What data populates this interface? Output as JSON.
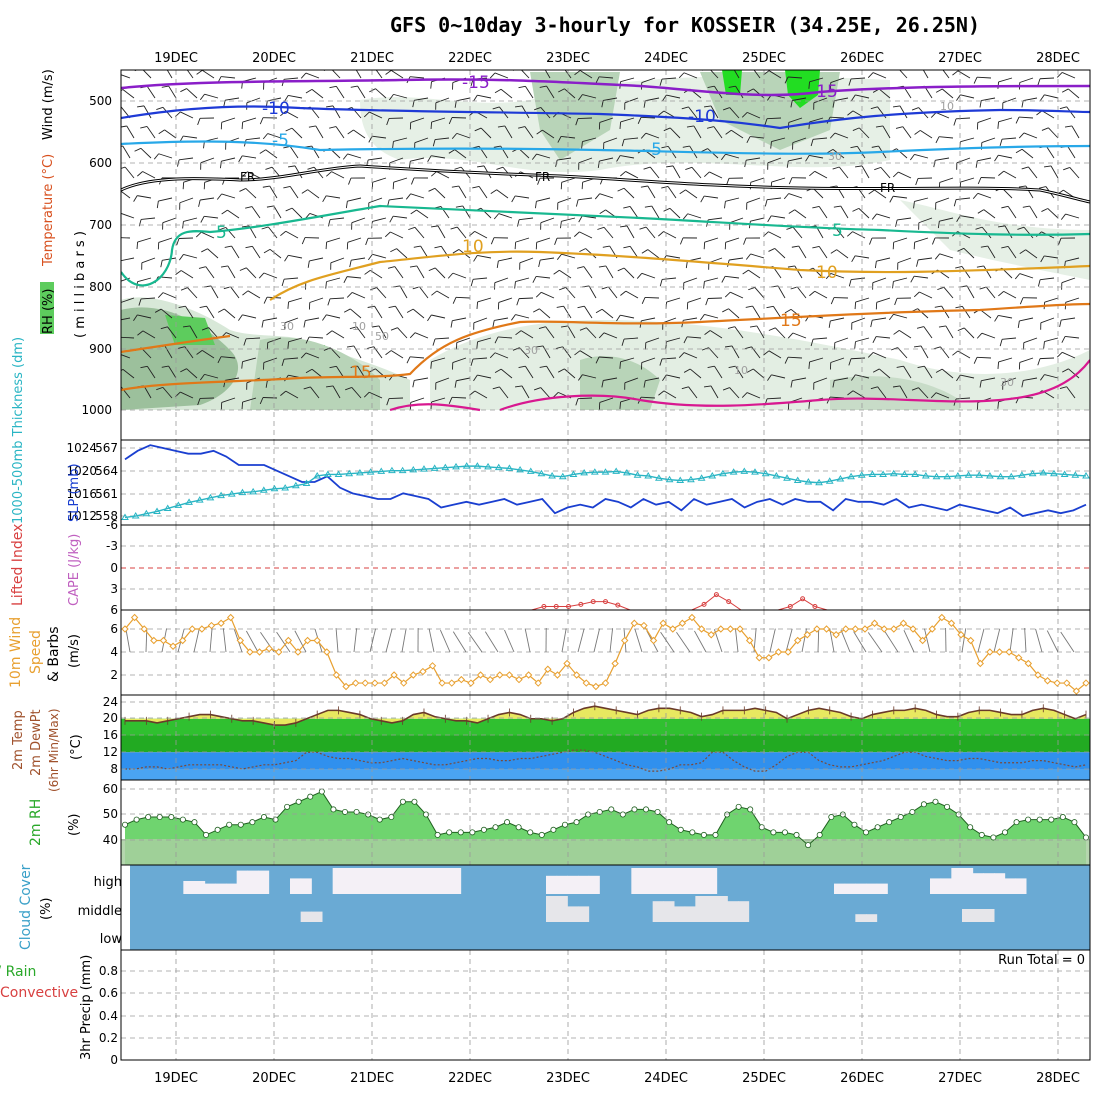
{
  "header": {
    "title": "GFS 0~10day 3-hourly for KOSSEIR (34.25E, 26.25N)"
  },
  "dates": [
    "19DEC",
    "20DEC",
    "21DEC",
    "22DEC",
    "23DEC",
    "24DEC",
    "25DEC",
    "26DEC",
    "27DEC",
    "28DEC"
  ],
  "upper_panel": {
    "labels": {
      "wind": "Wind (m/s)",
      "temperature": "Temperature (°C)",
      "rh": "RH (%)",
      "millibars": "( m i l l i b a r s )"
    },
    "pressure_ticks": [
      "500",
      "600",
      "700",
      "800",
      "900",
      "1000"
    ],
    "contour_labels": [
      "-15",
      "-15",
      "-10",
      "-10",
      "-5",
      "-5",
      "FR",
      "FR",
      "FR",
      "5",
      "5",
      "10",
      "10",
      "15",
      "15",
      "30",
      "30",
      "10",
      "10",
      "30",
      "50",
      "10",
      "30"
    ]
  },
  "thickness_panel": {
    "labels": {
      "thickness": "1000-500mb Thickness (dm)",
      "slp": "SLP (mb)"
    },
    "left_ticks": [
      "567",
      "564",
      "561",
      "558"
    ],
    "right_ticks": [
      "1024",
      "1020",
      "1016",
      "1012"
    ]
  },
  "cape_panel": {
    "labels": {
      "li": "Lifted Index",
      "cape": "CAPE (J/kg)"
    },
    "ticks": [
      "-6",
      "-3",
      "0",
      "3",
      "6"
    ]
  },
  "wind10_panel": {
    "labels": {
      "main": "10m Wind",
      "speed": "Speed",
      "barbs": "& Barbs",
      "unit": "(m/s)"
    },
    "ticks": [
      "6",
      "4",
      "2"
    ]
  },
  "temp_panel": {
    "labels": {
      "l1": "2m Temp",
      "l2": "2m DewPt",
      "l3": "(6hr Min/Max)",
      "unit": "(°C)"
    },
    "ticks": [
      "24",
      "20",
      "16",
      "12",
      "8"
    ]
  },
  "rh_panel": {
    "labels": {
      "main": "2m RH",
      "unit": "(%)"
    },
    "ticks": [
      "60",
      "50",
      "40"
    ]
  },
  "cloud_panel": {
    "labels": {
      "main": "Cloud Cover",
      "unit": "(%)"
    },
    "levels": [
      "high",
      "middle",
      "low"
    ]
  },
  "precip_panel": {
    "labels": {
      "l1": "tal / Rain",
      "l2": "Convective",
      "main": "3hr Precip (mm)"
    },
    "ticks": [
      "0.8",
      "0.6",
      "0.4",
      "0.2",
      "0"
    ],
    "run_total": "Run Total = 0"
  },
  "colors": {
    "slp": "#1a3fd0",
    "thickness": "#2ab5c4",
    "li": "#d84040",
    "cape": "#c060c0",
    "wind_speed": "#e8a030",
    "temp_fill": "#e8e860",
    "green_fill": "#30c030",
    "dew_fill": "#3090ee",
    "rh_fill": "#6fd46f",
    "cloud_bg": "#6aaad4",
    "cloud": "#f4f0f6"
  },
  "chart_data": [
    {
      "type": "line",
      "title": "",
      "x_unit": "time index (3-hourly steps)",
      "series": [
        {
          "name": "SLP",
          "values": [
            1022,
            1023.5,
            1024.5,
            1024,
            1023.5,
            1023,
            1023,
            1023.5,
            1022.5,
            1021,
            1021,
            1021,
            1020,
            1019,
            1018,
            1018,
            1019,
            1017,
            1016,
            1015.5,
            1015,
            1015,
            1016,
            1015.5,
            1015,
            1013.5,
            1014,
            1014.5,
            1014,
            1014.5,
            1015,
            1014,
            1014.5,
            1015,
            1012.5,
            1013.5,
            1014,
            1013.5,
            1015,
            1014.5,
            1013.5,
            1015,
            1014,
            1014.5,
            1013,
            1015,
            1014,
            1014.5,
            1015,
            1013.5,
            1014.5,
            1015,
            1014,
            1015,
            1014.5,
            1014.5,
            1013,
            1015,
            1014.5,
            1014.5,
            1014,
            1015,
            1013.5,
            1014,
            1013.5,
            1013,
            1014,
            1013.5,
            1013,
            1012.5,
            1013.5,
            1012,
            1012.5,
            1013,
            1012.5,
            1013,
            1014
          ]
        },
        {
          "name": "1000-500mb Thickness",
          "values": [
            557.8,
            558,
            558.3,
            558.6,
            559,
            559.4,
            559.8,
            560.1,
            560.4,
            560.7,
            560.9,
            561.1,
            561.2,
            561.4,
            561.6,
            561.7,
            562,
            562.3,
            563.3,
            563.5,
            563.5,
            563.6,
            563.7,
            563.8,
            563.9,
            564,
            564,
            564.1,
            564.2,
            564.3,
            564.4,
            564.5,
            564.6,
            564.6,
            564.5,
            564.4,
            564.3,
            564.1,
            563.9,
            563.6,
            563.3,
            563.2,
            563.5,
            563.7,
            563.8,
            563.8,
            563.9,
            563.7,
            563.4,
            563.3,
            563,
            562.8,
            562.7,
            562.8,
            563,
            563.3,
            563.6,
            563.8,
            563.9,
            563.8,
            563.6,
            563.3,
            563,
            562.7,
            562.5,
            562.4,
            562.6,
            562.9,
            563.2,
            563.4,
            563.5,
            563.5,
            563.6,
            563.5,
            563.5,
            563.3,
            563.2,
            563.2,
            563.3,
            563.4,
            563.4,
            563.3,
            563.2,
            563.2,
            563.4,
            563.6,
            563.7,
            563.6,
            563.5,
            563.4,
            563.3
          ]
        }
      ]
    },
    {
      "type": "line",
      "title": "",
      "series": [
        {
          "name": "Lifted Index",
          "values": [
            6,
            6,
            6,
            6,
            6,
            6,
            6,
            6,
            6,
            6,
            6,
            6,
            6,
            6,
            6,
            6,
            6,
            6,
            6,
            6,
            6,
            6,
            6,
            6,
            6,
            6,
            6,
            6,
            6,
            6,
            6,
            6,
            6,
            6,
            5.5,
            5.5,
            5.5,
            5.2,
            4.8,
            4.8,
            5.3,
            6,
            6,
            6,
            6,
            6,
            6,
            5.2,
            3.8,
            4.8,
            6,
            6,
            6,
            6,
            5.5,
            4.4,
            5.5,
            6,
            6,
            6,
            6,
            6,
            6,
            6,
            6,
            6,
            6,
            6,
            6,
            6,
            6,
            6,
            6,
            6,
            6,
            6,
            6,
            6,
            6
          ]
        }
      ]
    },
    {
      "type": "line",
      "title": "",
      "series": [
        {
          "name": "10m Wind Speed",
          "values": [
            6,
            7,
            6,
            5,
            5,
            4.5,
            5,
            6,
            6,
            6.3,
            6.5,
            7,
            5,
            4,
            4,
            4.3,
            4,
            5,
            4,
            5,
            5,
            4,
            2,
            1,
            1.3,
            1.3,
            1.3,
            1.3,
            2,
            1.3,
            2,
            2.3,
            2.8,
            1.3,
            1.3,
            1.6,
            1.3,
            2,
            1.6,
            2,
            2,
            1.6,
            2,
            1.3,
            2.5,
            2,
            3,
            2,
            1.3,
            1,
            1.3,
            3,
            5,
            6.5,
            6.3,
            5,
            6.5,
            6,
            6.5,
            7,
            6,
            5.5,
            6,
            6,
            6,
            5,
            3.5,
            3.5,
            4,
            4,
            5,
            5.5,
            6,
            6,
            5.5,
            6,
            6,
            6,
            6.5,
            6,
            6,
            6.5,
            6,
            5,
            6,
            7,
            6.5,
            5.5,
            5,
            3,
            4,
            4,
            4,
            3.5,
            3,
            2,
            1.5,
            1.3,
            1.3,
            0.6,
            1.3
          ]
        }
      ]
    },
    {
      "type": "area",
      "title": "",
      "series": [
        {
          "name": "2m Temp",
          "values": [
            19.5,
            19.5,
            19.5,
            19,
            19.5,
            20,
            20.5,
            21,
            21,
            20.5,
            20,
            19.5,
            19.5,
            19,
            18.5,
            18.5,
            19,
            20,
            21,
            22,
            22,
            21.5,
            21,
            20,
            19.5,
            19,
            19.5,
            21,
            21.5,
            20.5,
            20,
            19.5,
            19.5,
            19,
            20,
            21,
            21.5,
            21,
            20,
            20,
            19.5,
            20,
            21.5,
            22.5,
            23,
            22.5,
            22,
            21.5,
            21,
            22,
            22.5,
            22.5,
            22,
            21.5,
            20.5,
            21,
            22,
            22,
            22,
            22.5,
            22,
            21.5,
            20,
            21,
            22,
            22.5,
            22,
            21.5,
            20.5,
            20,
            21,
            21.5,
            22,
            22,
            22.5,
            22,
            21,
            20.5,
            20.5,
            21.5,
            22,
            22,
            21.5,
            21,
            21,
            22,
            22.5,
            22,
            21,
            20,
            21
          ]
        },
        {
          "name": "2m DewPt",
          "values": [
            8,
            8,
            8.5,
            8.5,
            8,
            8.5,
            9,
            9,
            9,
            9,
            8.5,
            8,
            8.5,
            9,
            9,
            9.5,
            10,
            12,
            12,
            11,
            10.5,
            10.5,
            10,
            9.5,
            9.5,
            10,
            10.5,
            10,
            9.5,
            9,
            9,
            9.5,
            10,
            10.5,
            10.5,
            10,
            10,
            10.5,
            10.5,
            11,
            11.5,
            12,
            12.5,
            12.5,
            12,
            11,
            10,
            9,
            8.5,
            7.5,
            7.5,
            8,
            9,
            9,
            9.5,
            12,
            12,
            10,
            8.5,
            7.5,
            7.5,
            9,
            11,
            12,
            12,
            10,
            9,
            8.5,
            8.5,
            9,
            9.5,
            10,
            11,
            12,
            12,
            11,
            10.5,
            10,
            10,
            10.5,
            10.5,
            10,
            9.5,
            9.5,
            9.5,
            10,
            10,
            9.5,
            9,
            8.5,
            9
          ]
        }
      ]
    },
    {
      "type": "area",
      "title": "",
      "series": [
        {
          "name": "2m RH",
          "values": [
            46,
            48,
            49,
            49,
            49,
            48,
            47,
            42,
            44,
            46,
            46,
            47,
            49,
            48,
            53,
            55,
            57,
            59,
            52,
            51,
            51,
            50,
            48,
            49,
            55,
            55,
            50,
            42,
            43,
            43,
            43,
            44,
            45,
            47,
            45,
            43,
            42,
            44,
            46,
            47,
            50,
            51,
            52,
            50,
            52,
            52,
            51,
            47,
            44,
            43,
            42,
            42,
            50,
            53,
            52,
            45,
            43,
            43,
            42,
            38,
            42,
            49,
            50,
            46,
            43,
            45,
            47,
            49,
            51,
            54,
            55,
            53,
            50,
            45,
            42,
            41,
            43,
            47,
            48,
            48,
            48,
            49,
            47,
            41
          ]
        }
      ]
    },
    {
      "type": "heatmap",
      "title": "",
      "rows": [
        "high",
        "middle",
        "low"
      ],
      "values": [
        [
          0,
          0,
          0,
          0,
          0,
          50,
          50,
          40,
          40,
          40,
          90,
          90,
          90,
          0,
          0,
          60,
          60,
          0,
          0,
          100,
          100,
          100,
          100,
          100,
          100,
          100,
          100,
          100,
          100,
          100,
          100,
          0,
          0,
          0,
          0,
          0,
          0,
          0,
          0,
          70,
          70,
          70,
          70,
          70,
          0,
          0,
          0,
          100,
          100,
          100,
          100,
          100,
          100,
          100,
          100,
          0,
          0,
          0,
          0,
          0,
          0,
          0,
          0,
          0,
          0,
          0,
          40,
          40,
          40,
          40,
          40,
          0,
          0,
          0,
          0,
          60,
          60,
          100,
          100,
          80,
          80,
          80,
          60,
          60,
          0,
          0,
          0,
          0,
          0,
          0
        ],
        [
          0,
          0,
          0,
          0,
          0,
          0,
          0,
          0,
          0,
          0,
          0,
          0,
          0,
          0,
          0,
          0,
          40,
          40,
          0,
          0,
          0,
          0,
          0,
          0,
          0,
          0,
          0,
          0,
          0,
          0,
          0,
          0,
          0,
          0,
          0,
          0,
          0,
          0,
          0,
          100,
          100,
          60,
          60,
          0,
          0,
          0,
          0,
          0,
          0,
          80,
          80,
          60,
          60,
          100,
          100,
          100,
          80,
          80,
          0,
          0,
          0,
          0,
          0,
          0,
          0,
          0,
          0,
          0,
          30,
          30,
          0,
          0,
          0,
          0,
          0,
          0,
          0,
          0,
          50,
          50,
          50,
          0,
          0,
          0,
          0,
          0,
          0,
          0,
          0,
          0
        ],
        [
          0,
          0,
          0,
          0,
          0,
          0,
          0,
          0,
          0,
          0,
          0,
          0,
          0,
          0,
          0,
          0,
          0,
          0,
          0,
          0,
          0,
          0,
          0,
          0,
          0,
          0,
          0,
          0,
          0,
          0,
          0,
          0,
          0,
          0,
          0,
          0,
          0,
          0,
          0,
          0,
          0,
          0,
          0,
          0,
          0,
          0,
          0,
          0,
          0,
          0,
          0,
          0,
          0,
          0,
          0,
          0,
          0,
          0,
          0,
          0,
          0,
          0,
          0,
          0,
          0,
          0,
          0,
          0,
          0,
          0,
          0,
          0,
          0,
          0,
          0,
          0,
          0,
          0,
          0,
          0,
          0,
          0,
          0,
          0,
          0,
          0,
          0,
          0,
          0
        ]
      ]
    },
    {
      "type": "bar",
      "title": "",
      "series": [
        {
          "name": "3hr Precip",
          "values": []
        }
      ],
      "ylim": [
        0,
        0.9
      ]
    }
  ]
}
